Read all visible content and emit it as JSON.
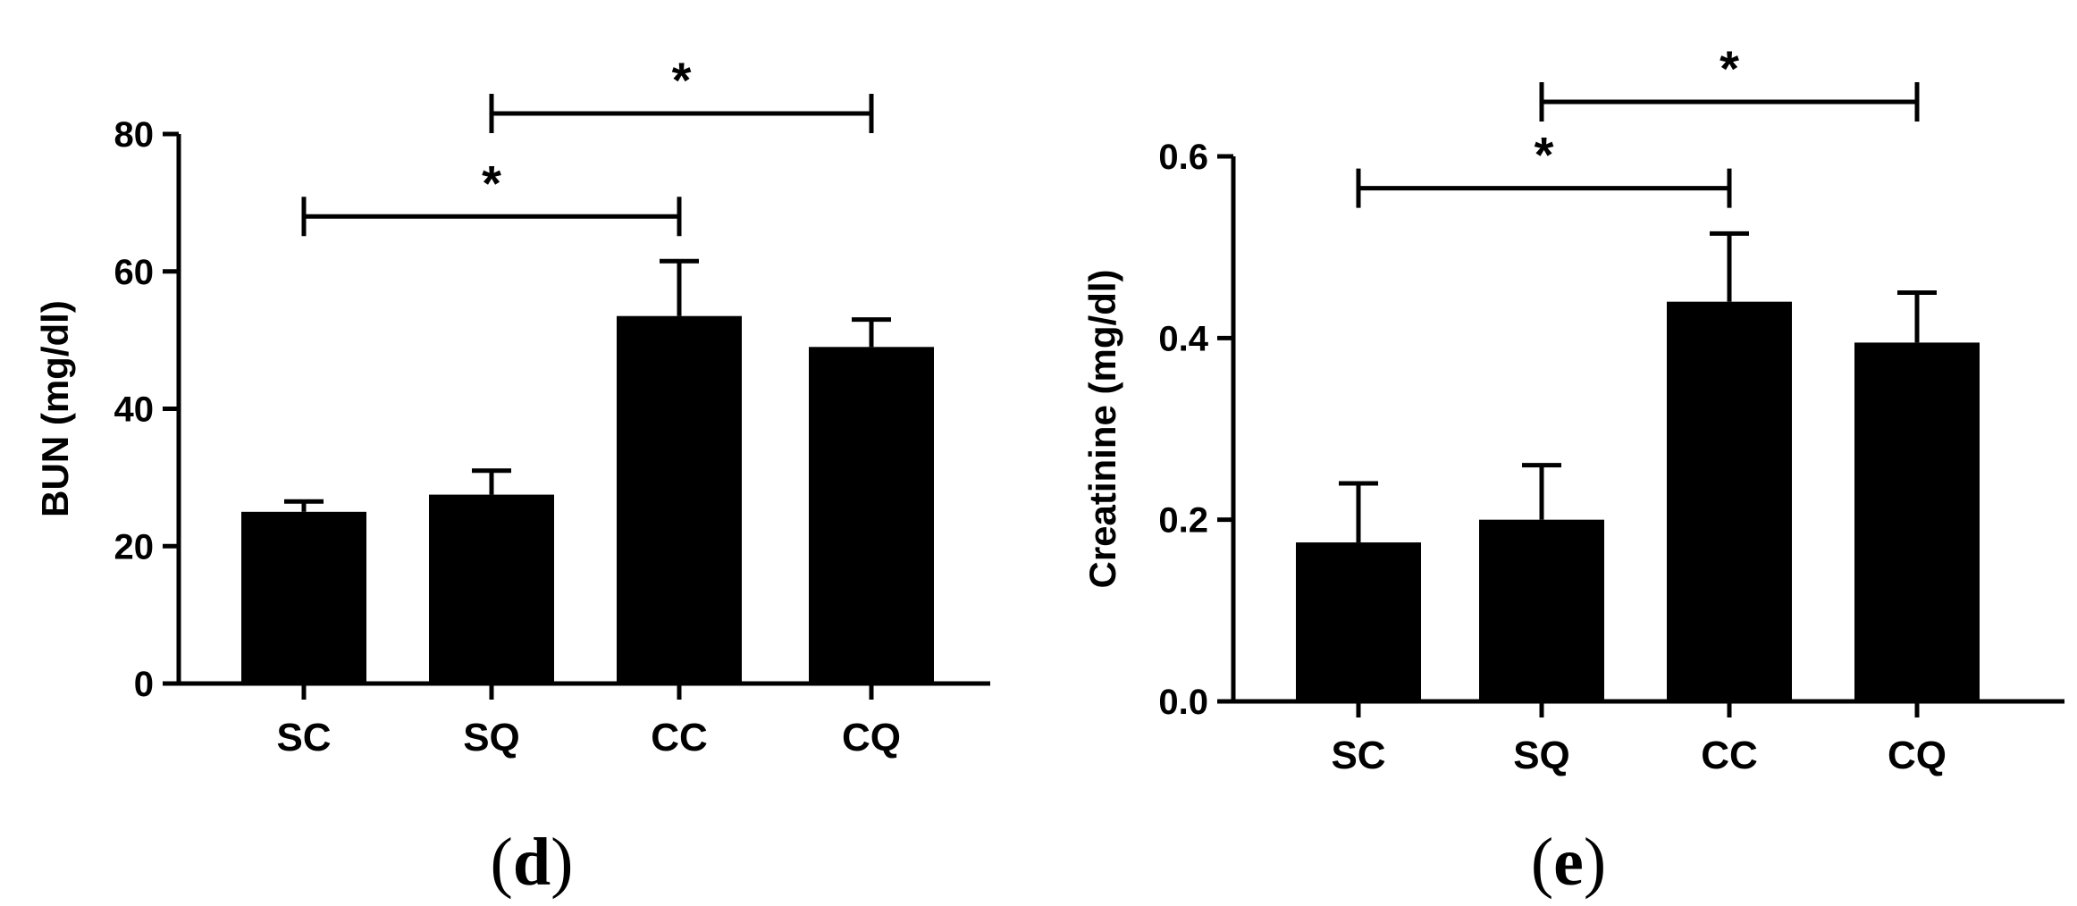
{
  "chart_data": [
    {
      "type": "bar",
      "panel_label": "d",
      "ylabel": "BUN (mg/dl)",
      "categories": [
        "SC",
        "SQ",
        "CC",
        "CQ"
      ],
      "values": [
        25,
        27.5,
        53.5,
        49
      ],
      "errors": [
        1.5,
        3.5,
        8,
        4
      ],
      "ylim": [
        0,
        80
      ],
      "yticks": [
        0,
        20,
        40,
        60,
        80
      ],
      "ytick_labels": [
        "0",
        "20",
        "40",
        "60",
        "80"
      ],
      "significance": [
        {
          "from": "SQ",
          "to": "CQ",
          "y": 83,
          "label": "*"
        },
        {
          "from": "SC",
          "to": "CC",
          "y": 68,
          "label": "*"
        }
      ],
      "grid": false
    },
    {
      "type": "bar",
      "panel_label": "e",
      "ylabel": "Creatinine (mg/dl)",
      "categories": [
        "SC",
        "SQ",
        "CC",
        "CQ"
      ],
      "values": [
        0.175,
        0.2,
        0.44,
        0.395
      ],
      "errors": [
        0.065,
        0.06,
        0.075,
        0.055
      ],
      "ylim": [
        0,
        0.6
      ],
      "yticks": [
        0,
        0.2,
        0.4,
        0.6
      ],
      "ytick_labels": [
        "0.0",
        "0.2",
        "0.4",
        "0.6"
      ],
      "significance": [
        {
          "from": "SQ",
          "to": "CQ",
          "y": 0.66,
          "label": "*"
        },
        {
          "from": "SC",
          "to": "CC",
          "y": 0.565,
          "label": "*"
        }
      ],
      "grid": false
    }
  ]
}
